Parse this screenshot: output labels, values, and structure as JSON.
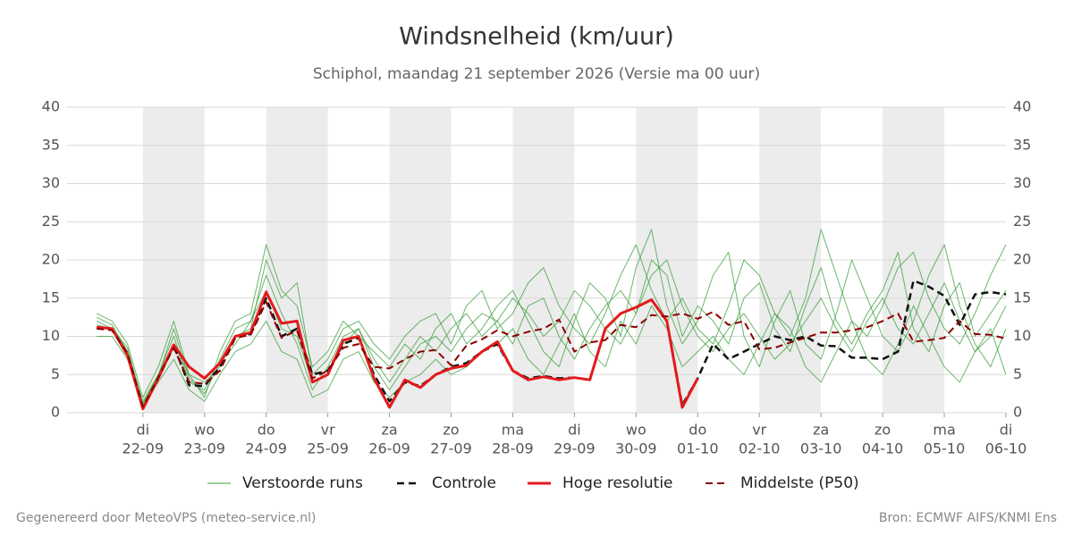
{
  "chart_data": {
    "type": "line",
    "title": "Windsnelheid (km/uur)",
    "subtitle": "Schiphol, maandag 21 september 2026 (Versie ma 00 uur)",
    "footer_left": "Gegenereerd door MeteoVPS (meteo-service.nl)",
    "footer_right": "Bron: ECMWF AIFS/KNMI Ens",
    "grid": true,
    "xlim": [
      -0.23,
      15
    ],
    "ylim": [
      0,
      40
    ],
    "yticks": [
      0,
      5,
      10,
      15,
      20,
      25,
      30,
      35,
      40
    ],
    "xtick_days": [
      "di",
      "wo",
      "do",
      "vr",
      "za",
      "zo",
      "ma",
      "di",
      "wo",
      "do",
      "vr",
      "za",
      "zo",
      "ma",
      "di"
    ],
    "xticks": [
      {
        "value": 1,
        "label": "22-09"
      },
      {
        "value": 2,
        "label": "23-09"
      },
      {
        "value": 3,
        "label": "24-09"
      },
      {
        "value": 4,
        "label": "25-09"
      },
      {
        "value": 5,
        "label": "26-09"
      },
      {
        "value": 6,
        "label": "27-09"
      },
      {
        "value": 7,
        "label": "28-09"
      },
      {
        "value": 8,
        "label": "29-09"
      },
      {
        "value": 9,
        "label": "30-09"
      },
      {
        "value": 10,
        "label": "01-10"
      },
      {
        "value": 11,
        "label": "02-10"
      },
      {
        "value": 12,
        "label": "03-10"
      },
      {
        "value": 13,
        "label": "04-10"
      },
      {
        "value": 14,
        "label": "05-10"
      },
      {
        "value": 15,
        "label": "06-10"
      }
    ],
    "x": [
      0.25,
      0.5,
      0.75,
      1,
      1.25,
      1.5,
      1.75,
      2,
      2.25,
      2.5,
      2.75,
      3,
      3.25,
      3.5,
      3.75,
      4,
      4.25,
      4.5,
      4.75,
      5,
      5.25,
      5.5,
      5.75,
      6,
      6.25,
      6.5,
      6.75,
      7,
      7.25,
      7.5,
      7.75,
      8,
      8.25,
      8.5,
      8.75,
      9,
      9.25,
      9.5,
      9.75,
      10,
      10.25,
      10.5,
      10.75,
      11,
      11.25,
      11.5,
      11.75,
      12,
      12.25,
      12.5,
      12.75,
      13,
      13.25,
      13.5,
      13.75,
      14,
      14.25,
      14.5,
      14.75,
      15
    ],
    "ensemble": {
      "name": "Verstoorde runs",
      "color": "#3a9e3a",
      "members": [
        [
          12,
          11,
          8,
          1.5,
          5,
          10,
          4,
          3,
          7,
          11,
          12,
          18,
          13,
          9,
          3,
          6,
          10,
          11,
          6,
          3,
          6,
          9,
          10,
          8,
          11,
          13,
          12,
          9,
          14,
          15,
          10,
          7,
          11,
          14,
          16,
          13,
          20,
          18,
          10,
          14,
          12,
          9,
          15,
          17,
          11,
          8,
          14,
          19,
          12,
          9,
          13,
          16,
          21,
          11,
          8,
          14,
          17,
          10,
          13,
          16
        ],
        [
          13,
          12,
          9,
          2,
          6,
          12,
          5,
          2,
          8,
          12,
          13,
          22,
          16,
          14,
          6,
          8,
          12,
          10,
          8,
          6,
          9,
          7,
          11,
          13,
          9,
          11,
          14,
          16,
          12,
          8,
          6,
          12,
          17,
          15,
          10,
          19,
          24,
          14,
          9,
          12,
          18,
          21,
          10,
          6,
          12,
          16,
          9,
          7,
          13,
          20,
          15,
          10,
          8,
          12,
          18,
          22,
          14,
          9,
          6,
          11
        ],
        [
          10,
          10,
          7,
          1,
          4,
          7,
          3,
          1.5,
          5,
          8,
          9,
          12,
          8,
          7,
          2,
          3,
          7,
          8,
          4,
          2,
          4,
          5,
          7,
          5,
          6,
          8,
          9,
          11,
          7,
          5,
          9,
          13,
          8,
          6,
          12,
          9,
          14,
          11,
          6,
          8,
          10,
          7,
          5,
          9,
          13,
          11,
          6,
          4,
          8,
          12,
          7,
          5,
          9,
          14,
          10,
          6,
          4,
          8,
          11,
          5
        ],
        [
          11.5,
          11,
          8.5,
          1,
          5,
          9,
          5,
          4,
          6,
          10,
          11,
          20,
          15,
          17,
          5,
          7,
          11,
          12,
          9,
          7,
          10,
          12,
          13,
          9,
          14,
          16,
          11,
          13,
          17,
          19,
          14,
          11,
          9,
          13,
          18,
          22,
          16,
          12,
          15,
          11,
          9,
          14,
          20,
          18,
          13,
          10,
          15,
          24,
          18,
          12,
          10,
          14,
          19,
          21,
          15,
          11,
          9,
          13,
          18,
          22
        ],
        [
          12.5,
          11.5,
          8,
          1.2,
          4.8,
          11,
          4.5,
          2.5,
          6.5,
          9,
          12,
          16,
          11,
          10,
          4,
          5,
          9,
          11,
          7,
          4,
          7,
          10,
          8,
          11,
          13,
          10,
          12,
          15,
          13,
          10,
          12,
          16,
          14,
          11,
          9,
          13,
          18,
          20,
          14,
          10,
          8,
          11,
          13,
          10,
          7,
          9,
          12,
          15,
          11,
          8,
          12,
          15,
          11,
          9,
          13,
          17,
          12,
          8,
          10,
          14
        ]
      ]
    },
    "series": [
      {
        "name": "Controle",
        "color": "#111111",
        "dash": true,
        "width": 2.5,
        "values": [
          11,
          11,
          7.5,
          0.5,
          4.5,
          8.8,
          3.6,
          3.5,
          6,
          10,
          10.3,
          15,
          10,
          11,
          5,
          5.5,
          9,
          9.8,
          5,
          1.5,
          4,
          3.5,
          5,
          6,
          6.5,
          8,
          9,
          5.5,
          4.5,
          4.8,
          4.5,
          4.6,
          4.3,
          11,
          13,
          13.8,
          14.8,
          12,
          1,
          4.5,
          9,
          7,
          8,
          9,
          10,
          9.5,
          10,
          8.8,
          8.7,
          7.2,
          7.2,
          7,
          8,
          17.3,
          16.5,
          15.3,
          11.5,
          15.5,
          15.8,
          15.5
        ]
      },
      {
        "name": "Hoge resolutie",
        "color": "#e41a1c",
        "dash": false,
        "width": 3,
        "values": [
          11.2,
          11,
          7.5,
          0.5,
          4.5,
          8.9,
          6,
          4.5,
          6.5,
          10,
          10.5,
          15.8,
          11.7,
          12,
          4,
          5,
          9.5,
          10,
          4.5,
          0.7,
          4.3,
          3.3,
          5,
          5.8,
          6.2,
          8,
          9.3,
          5.5,
          4.3,
          4.7,
          4.3,
          4.6,
          4.3,
          11,
          13,
          13.8,
          14.8,
          12,
          0.7,
          4.5,
          null,
          null,
          null,
          null,
          null,
          null,
          null,
          null,
          null,
          null,
          null,
          null,
          null,
          null,
          null,
          null,
          null,
          null,
          null,
          null
        ]
      },
      {
        "name": "Middelste (P50)",
        "color": "#8b0000",
        "dash": true,
        "width": 2,
        "values": [
          11,
          10.8,
          7.8,
          0.8,
          4.6,
          8.5,
          4,
          3.8,
          5.5,
          9.8,
          10.2,
          14.5,
          9.8,
          10.8,
          4.5,
          5.5,
          8.5,
          9,
          6,
          5.8,
          7,
          8,
          8.2,
          6.2,
          8.8,
          9.6,
          10.8,
          10,
          10.6,
          11,
          12.2,
          8,
          9.2,
          9.5,
          11.5,
          11.2,
          12.8,
          12.6,
          13,
          12.3,
          13.2,
          11.5,
          12,
          8.3,
          8.5,
          9.2,
          9.8,
          10.5,
          10.5,
          10.8,
          11.2,
          12,
          13,
          9.3,
          9.5,
          9.8,
          12,
          10.3,
          10.2,
          9.7
        ]
      }
    ]
  }
}
